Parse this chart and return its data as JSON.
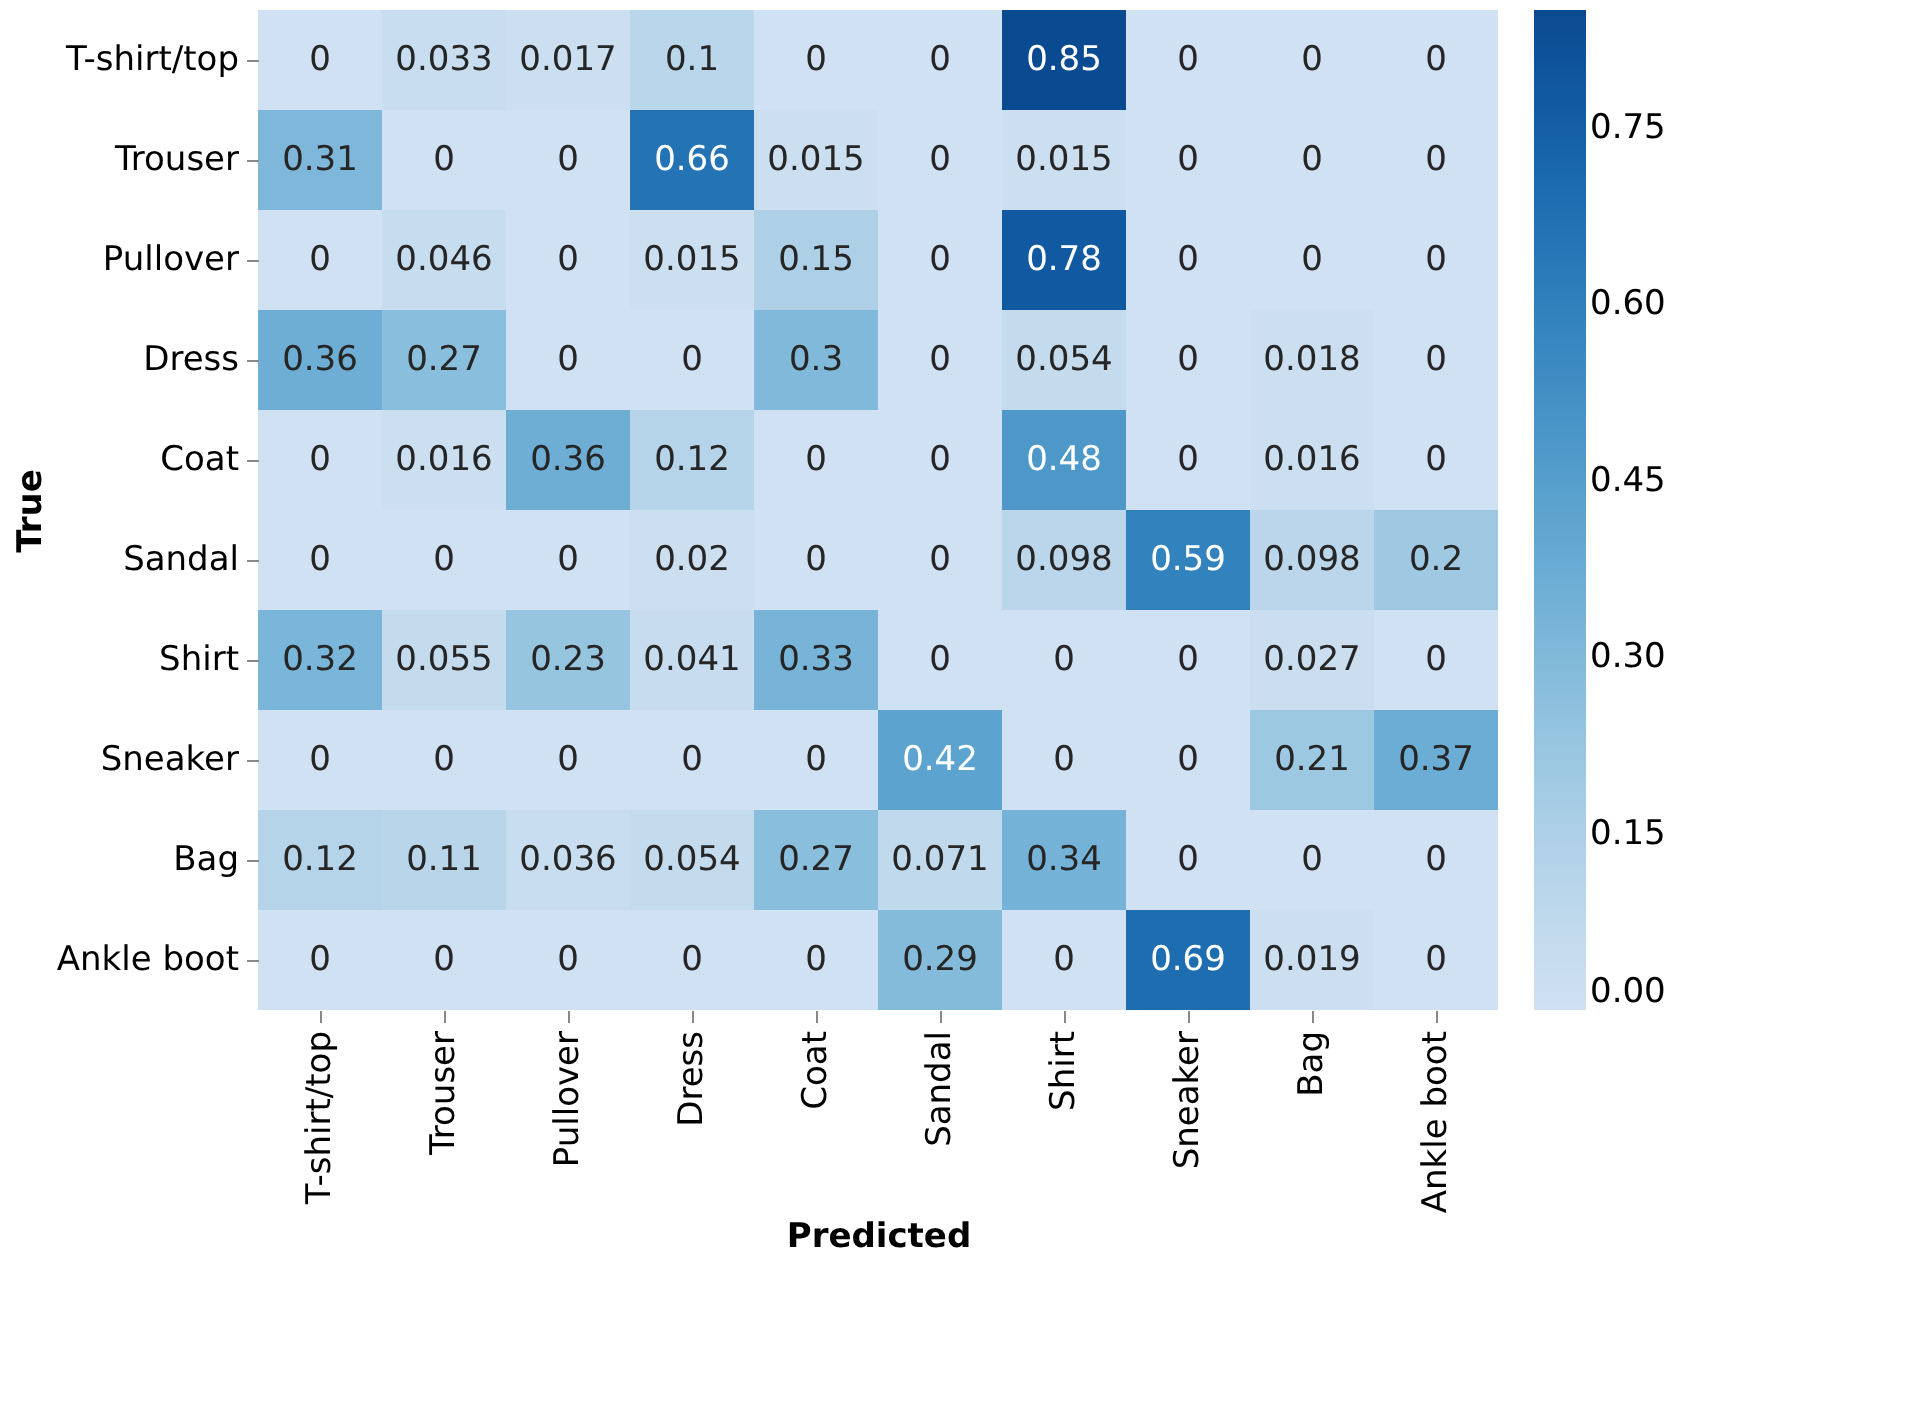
{
  "chart_data": {
    "type": "heatmap",
    "xlabel": "Predicted",
    "ylabel": "True",
    "categories": [
      "T-shirt/top",
      "Trouser",
      "Pullover",
      "Dress",
      "Coat",
      "Sandal",
      "Shirt",
      "Sneaker",
      "Bag",
      "Ankle boot"
    ],
    "y_categories": [
      "T-shirt/top",
      "Trouser",
      "Pullover",
      "Dress",
      "Coat",
      "Sandal",
      "Shirt",
      "Sneaker",
      "Bag",
      "Ankle boot"
    ],
    "cells": [
      [
        0,
        0.033,
        0.017,
        0.1,
        0,
        0,
        0.85,
        0,
        0,
        0
      ],
      [
        0.31,
        0,
        0,
        0.66,
        0.015,
        0,
        0.015,
        0,
        0,
        0
      ],
      [
        0,
        0.046,
        0,
        0.015,
        0.15,
        0,
        0.78,
        0,
        0,
        0
      ],
      [
        0.36,
        0.27,
        0,
        0,
        0.3,
        0,
        0.054,
        0,
        0.018,
        0
      ],
      [
        0,
        0.016,
        0.36,
        0.12,
        0,
        0,
        0.48,
        0,
        0.016,
        0
      ],
      [
        0,
        0,
        0,
        0.02,
        0,
        0,
        0.098,
        0.59,
        0.098,
        0.2
      ],
      [
        0.32,
        0.055,
        0.23,
        0.041,
        0.33,
        0,
        0,
        0,
        0.027,
        0
      ],
      [
        0,
        0,
        0,
        0,
        0,
        0.42,
        0,
        0,
        0.21,
        0.37
      ],
      [
        0.12,
        0.11,
        0.036,
        0.054,
        0.27,
        0.071,
        0.34,
        0,
        0,
        0
      ],
      [
        0,
        0,
        0,
        0,
        0,
        0.29,
        0,
        0.69,
        0.019,
        0
      ]
    ],
    "clim": [
      0,
      0.85
    ],
    "cticks": [
      {
        "value": 0,
        "label": "0.00"
      },
      {
        "value": 0.15,
        "label": "0.15"
      },
      {
        "value": 0.3,
        "label": "0.30"
      },
      {
        "value": 0.45,
        "label": "0.45"
      },
      {
        "value": 0.6,
        "label": "0.60"
      },
      {
        "value": 0.75,
        "label": "0.75"
      }
    ],
    "data_labels": true
  }
}
